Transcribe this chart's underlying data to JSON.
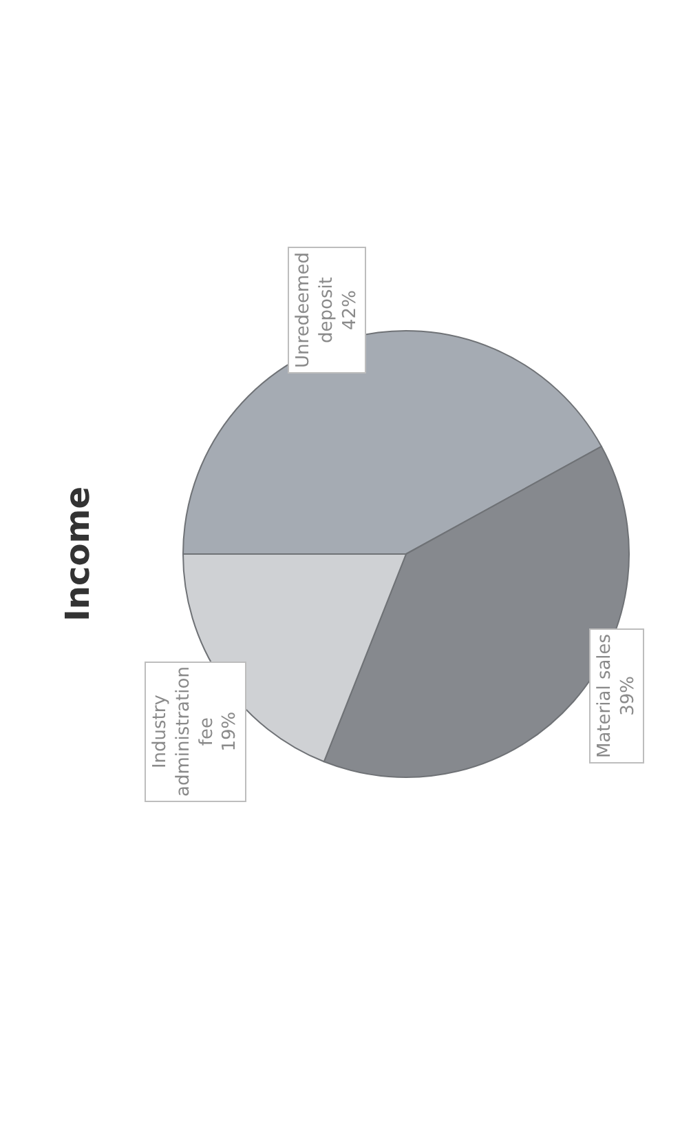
{
  "chart_data": {
    "type": "pie",
    "title": "Income",
    "categories": [
      "Unredeemed deposit",
      "Material sales",
      "Industry administration fee"
    ],
    "values": [
      42,
      39,
      19
    ],
    "value_labels": [
      "42%",
      "39%",
      "19%"
    ],
    "colors": [
      "#a5abb3",
      "#86898e",
      "#cfd1d4"
    ],
    "legend": false
  }
}
